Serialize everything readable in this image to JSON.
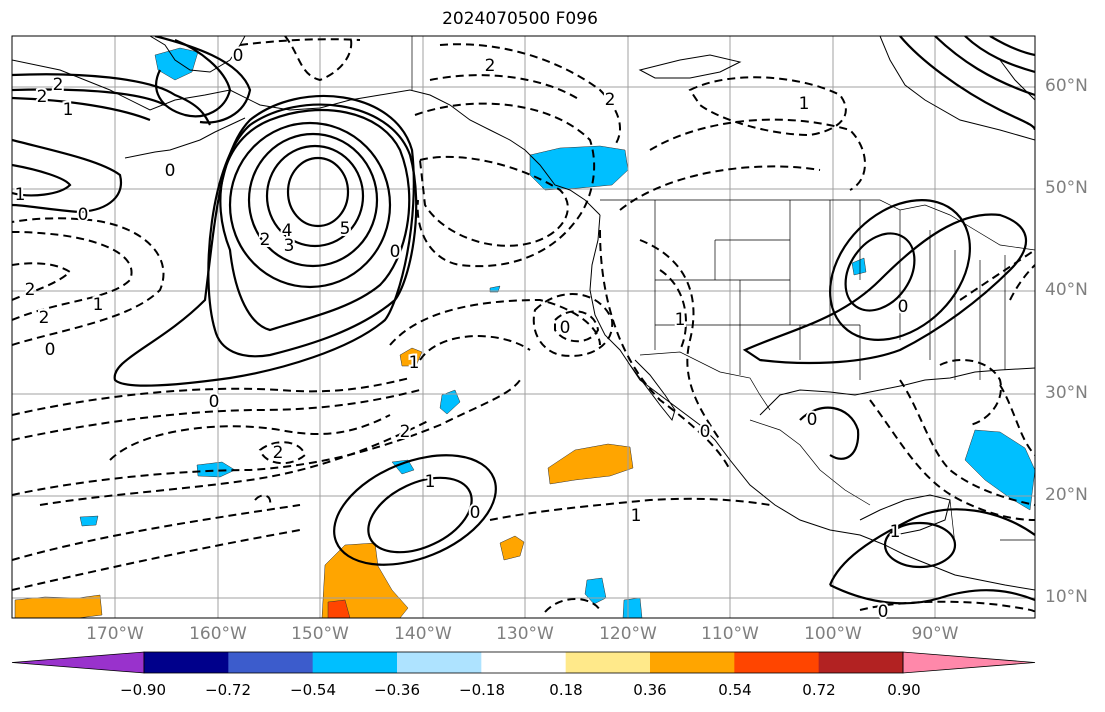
{
  "title": "2024070500 F096",
  "map": {
    "lat_labels": [
      "60°N",
      "50°N",
      "40°N",
      "30°N",
      "20°N",
      "10°N"
    ],
    "lon_labels": [
      "170°W",
      "160°W",
      "150°W",
      "140°W",
      "130°W",
      "120°W",
      "110°W",
      "100°W",
      "90°W"
    ],
    "contour_labels": [
      "2",
      "2",
      "1",
      "2",
      "0",
      "2",
      "1",
      "1",
      "0",
      "5",
      "4",
      "3",
      "2",
      "0",
      "1",
      "2",
      "0",
      "1",
      "2",
      "0",
      "0",
      "2",
      "0",
      "1",
      "0",
      "0",
      "0",
      "2",
      "1",
      "0",
      "1",
      "1",
      "0"
    ]
  },
  "colorbar": {
    "colors": [
      "#9932cc",
      "#00008b",
      "#3c5ccc",
      "#00bfff",
      "#aee3ff",
      "#ffffff",
      "#ffe98a",
      "#ffa500",
      "#ff4500",
      "#b22222",
      "#ff88aa"
    ],
    "ticks": [
      "−0.90",
      "−0.72",
      "−0.54",
      "−0.36",
      "−0.18",
      "0.18",
      "0.36",
      "0.54",
      "0.72",
      "0.90"
    ]
  }
}
